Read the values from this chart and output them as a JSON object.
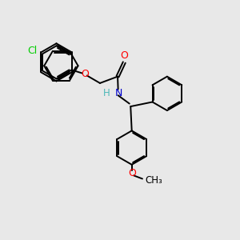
{
  "bg_color": "#e8e8e8",
  "bond_color": "#000000",
  "cl_color": "#00cc00",
  "o_color": "#ff0000",
  "n_color": "#0000cc",
  "nh_color": "#4db8b8",
  "lw": 1.4,
  "fs": 8.5,
  "r_ring": 0.72,
  "dbo": 0.055,
  "xlim": [
    0,
    10
  ],
  "ylim": [
    0,
    10
  ]
}
